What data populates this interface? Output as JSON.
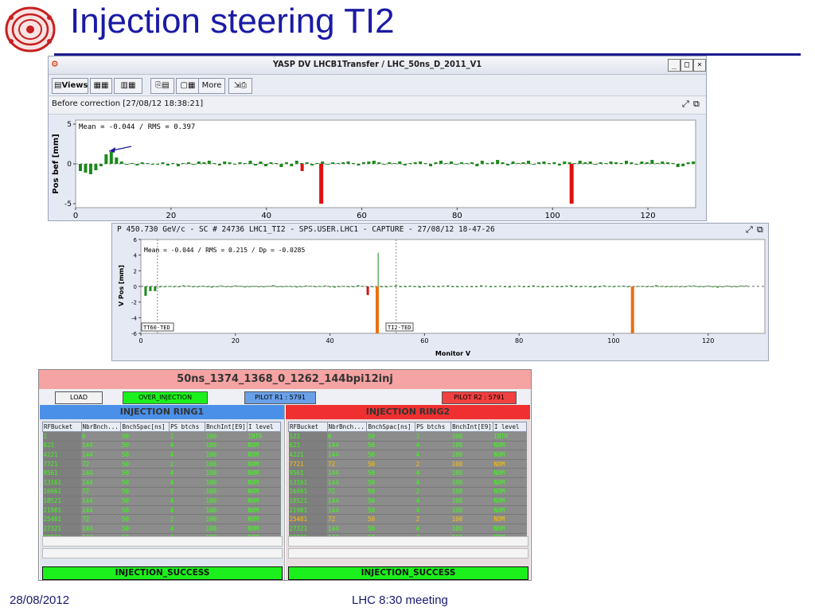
{
  "slide": {
    "title": "Injection steering TI2",
    "footer_date": "28/08/2012",
    "footer_center": "LHC 8:30 meeting"
  },
  "yasp": {
    "window_title": "YASP DV LHCB1Transfer / LHC_50ns_D_2011_V1",
    "toolbar": {
      "views_label": "Views",
      "more_label": "More"
    },
    "subbar_text": "Before correction  [27/08/12 18:38:21]",
    "chart": {
      "ylabel": "Pos bef [mm]",
      "annotation": "Mean =   -0.044 / RMS =    0.397",
      "x_ticks": [
        0,
        20,
        40,
        60,
        80,
        100,
        120
      ],
      "y_ticks": [
        5,
        0,
        -5
      ],
      "xlim": [
        0,
        130
      ],
      "ylim": [
        -5.5,
        5.5
      ]
    }
  },
  "capture": {
    "window_title": "P 450.730 GeV/c - SC # 24736 LHC1_TI2 - SPS.USER.LHC1 - CAPTURE - 27/08/12 18-47-26",
    "chart": {
      "ylabel": "V Pos [mm]",
      "xlabel": "Monitor V",
      "annotation": "Mean =   -0.044 / RMS =    0.215 / Dp = -0.0285",
      "marker_left": "TT60-TED",
      "marker_right": "TI2-TED",
      "x_ticks": [
        0,
        20,
        40,
        60,
        80,
        100,
        120
      ],
      "y_ticks": [
        6,
        4,
        2,
        0,
        -2,
        -4,
        -6
      ],
      "xlim": [
        0,
        132
      ],
      "ylim": [
        -6,
        6
      ]
    }
  },
  "injection": {
    "header": "50ns_1374_1368_0_1262_144bpi12inj",
    "load_label": "LOAD",
    "over_injection_label": "OVER_INJECTION",
    "pilot_r1": "PILOT R1 : 5791",
    "pilot_r2": "PILOT R2 : 5791",
    "columns": [
      "RFBucket",
      "NbrBnch...",
      "BnchSpac[ns]",
      "PS btchs",
      "BnchInt[E9]",
      "I level"
    ],
    "ring1": {
      "title": "INJECTION RING1",
      "status": "INJECTION_SUCCESS",
      "rows": [
        [
          "1",
          "6",
          "50",
          "1",
          "100",
          "INTR"
        ],
        [
          "621",
          "144",
          "50",
          "4",
          "100",
          "NOM"
        ],
        [
          "4221",
          "144",
          "50",
          "4",
          "100",
          "NOM"
        ],
        [
          "7721",
          "72",
          "50",
          "2",
          "100",
          "NOM"
        ],
        [
          "9561",
          "144",
          "50",
          "4",
          "100",
          "NOM"
        ],
        [
          "13161",
          "144",
          "50",
          "4",
          "100",
          "NOM"
        ],
        [
          "16661",
          "72",
          "50",
          "2",
          "100",
          "NOM"
        ],
        [
          "18521",
          "144",
          "50",
          "4",
          "100",
          "NOM"
        ],
        [
          "21981",
          "144",
          "50",
          "4",
          "100",
          "NOM"
        ],
        [
          "25481",
          "72",
          "50",
          "2",
          "100",
          "NOM"
        ],
        [
          "27321",
          "144",
          "50",
          "4",
          "100",
          "NOM"
        ],
        [
          "30821",
          "144",
          "50",
          "4",
          "100",
          "NOM"
        ]
      ]
    },
    "ring2": {
      "title": "INJECTION RING2",
      "status": "INJECTION_SUCCESS",
      "rows": [
        [
          "121",
          "6",
          "50",
          "1",
          "100",
          "INTR"
        ],
        [
          "621",
          "144",
          "50",
          "4",
          "100",
          "NOM"
        ],
        [
          "4221",
          "144",
          "50",
          "4",
          "100",
          "NOM"
        ],
        [
          "7721",
          "72",
          "50",
          "2",
          "100",
          "NOM"
        ],
        [
          "9561",
          "144",
          "50",
          "4",
          "100",
          "NOM"
        ],
        [
          "13161",
          "144",
          "50",
          "4",
          "100",
          "NOM"
        ],
        [
          "16661",
          "72",
          "50",
          "2",
          "100",
          "NOM"
        ],
        [
          "18521",
          "144",
          "50",
          "4",
          "100",
          "NOM"
        ],
        [
          "21981",
          "144",
          "50",
          "4",
          "100",
          "NOM"
        ],
        [
          "25481",
          "72",
          "50",
          "2",
          "100",
          "NOM"
        ],
        [
          "27321",
          "144",
          "50",
          "4",
          "100",
          "NOM"
        ],
        [
          "30821",
          "144",
          "50",
          "4",
          "100",
          "NOM"
        ]
      ],
      "highlight_rows": [
        3,
        9
      ]
    }
  },
  "colors": {
    "title_blue": "#1a1aa6",
    "good_bar": "#1a8a1a",
    "bad_bar_red": "#e01010",
    "bad_bar_orange": "#e87010",
    "ring1_header": "#4a90e8",
    "ring2_header": "#f03030",
    "status_green": "#1cf01c",
    "cell_green_text": "#39ff14",
    "cell_warn_text": "#ffc200"
  }
}
